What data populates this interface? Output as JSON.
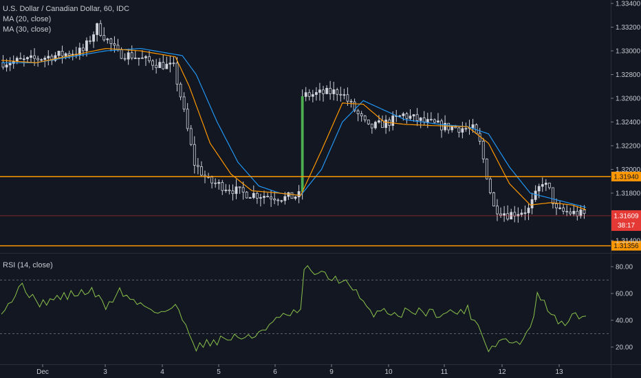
{
  "legend": {
    "main_title": "U.S. Dollar / Canadian Dollar, 60, IDC",
    "ma20_label": "MA (20, close)",
    "ma30_label": "MA (30, close)",
    "rsi_label": "RSI (14, close)"
  },
  "colors": {
    "background": "#131722",
    "candle": "#d1d4dc",
    "ma20": "#ff9800",
    "ma30": "#2196f3",
    "rsi": "#8bc34a",
    "level_line": "#ff9800",
    "last_price": "#e53935",
    "grid_text": "#c8cbd2",
    "bullish_jump": "#4caf50"
  },
  "chart_data": [
    {
      "type": "candlestick",
      "title": "U.S. Dollar / Canadian Dollar, 60, IDC",
      "ylim": [
        1.313,
        1.334
      ],
      "y_ticks": [
        "1.33400",
        "1.33200",
        "1.33000",
        "1.32800",
        "1.32600",
        "1.32400",
        "1.32200",
        "1.32000",
        "1.31800",
        "1.31400"
      ],
      "x_ticks": [
        "Dec",
        "3",
        "4",
        "5",
        "6",
        "9",
        "10",
        "11",
        "12",
        "13"
      ],
      "series": [
        {
          "name": "MA (20, close)",
          "color": "#ff9800"
        },
        {
          "name": "MA (30, close)",
          "color": "#2196f3"
        }
      ],
      "close_path": [
        [
          0,
          1.329
        ],
        [
          8,
          1.3292
        ],
        [
          16,
          1.3296
        ],
        [
          24,
          1.33
        ],
        [
          28,
          1.332
        ],
        [
          34,
          1.3298
        ],
        [
          38,
          1.3296
        ],
        [
          44,
          1.329
        ],
        [
          50,
          1.3286
        ],
        [
          52,
          1.3262
        ],
        [
          56,
          1.3205
        ],
        [
          60,
          1.319
        ],
        [
          64,
          1.3186
        ],
        [
          70,
          1.318
        ],
        [
          76,
          1.3178
        ],
        [
          82,
          1.3176
        ],
        [
          86,
          1.3178
        ],
        [
          87,
          1.3262
        ],
        [
          92,
          1.3264
        ],
        [
          98,
          1.3266
        ],
        [
          102,
          1.325
        ],
        [
          106,
          1.3235
        ],
        [
          112,
          1.324
        ],
        [
          116,
          1.3246
        ],
        [
          122,
          1.324
        ],
        [
          128,
          1.3236
        ],
        [
          136,
          1.3234
        ],
        [
          138,
          1.3222
        ],
        [
          142,
          1.3168
        ],
        [
          146,
          1.3162
        ],
        [
          152,
          1.3166
        ],
        [
          156,
          1.319
        ],
        [
          158,
          1.3182
        ],
        [
          160,
          1.3165
        ],
        [
          168,
          1.3162
        ]
      ],
      "ma20_path": [
        [
          0,
          1.3292
        ],
        [
          10,
          1.329
        ],
        [
          20,
          1.3296
        ],
        [
          30,
          1.3302
        ],
        [
          40,
          1.33
        ],
        [
          50,
          1.3295
        ],
        [
          54,
          1.327
        ],
        [
          60,
          1.3222
        ],
        [
          66,
          1.3196
        ],
        [
          72,
          1.3182
        ],
        [
          80,
          1.318
        ],
        [
          86,
          1.3178
        ],
        [
          92,
          1.3216
        ],
        [
          98,
          1.3256
        ],
        [
          104,
          1.3255
        ],
        [
          110,
          1.324
        ],
        [
          116,
          1.3238
        ],
        [
          124,
          1.3237
        ],
        [
          134,
          1.3236
        ],
        [
          140,
          1.3222
        ],
        [
          146,
          1.3188
        ],
        [
          152,
          1.317
        ],
        [
          158,
          1.3172
        ],
        [
          164,
          1.317
        ],
        [
          168,
          1.3166
        ]
      ],
      "ma30_path": [
        [
          0,
          1.329
        ],
        [
          10,
          1.329
        ],
        [
          20,
          1.3295
        ],
        [
          30,
          1.33
        ],
        [
          40,
          1.3302
        ],
        [
          52,
          1.3296
        ],
        [
          56,
          1.328
        ],
        [
          62,
          1.324
        ],
        [
          68,
          1.3206
        ],
        [
          74,
          1.3186
        ],
        [
          80,
          1.318
        ],
        [
          86,
          1.3178
        ],
        [
          92,
          1.32
        ],
        [
          98,
          1.324
        ],
        [
          104,
          1.3258
        ],
        [
          110,
          1.325
        ],
        [
          116,
          1.3242
        ],
        [
          126,
          1.3238
        ],
        [
          134,
          1.3236
        ],
        [
          140,
          1.323
        ],
        [
          146,
          1.3202
        ],
        [
          152,
          1.318
        ],
        [
          160,
          1.3174
        ],
        [
          168,
          1.3168
        ]
      ],
      "levels": [
        {
          "value": 1.3194,
          "label": "1.31940"
        },
        {
          "value": 1.31356,
          "label": "1.31356"
        }
      ],
      "last_price": {
        "value": 1.31609,
        "label": "1.31609",
        "countdown": "38:17"
      }
    },
    {
      "type": "line",
      "title": "RSI (14, close)",
      "ylim": [
        10,
        87
      ],
      "y_ticks": [
        "80.00",
        "60.00",
        "40.00",
        "20.00"
      ],
      "reference_lines": [
        70,
        30
      ],
      "series": [
        {
          "name": "RSI (14, close)",
          "color": "#8bc34a"
        }
      ],
      "path": [
        [
          0,
          48
        ],
        [
          4,
          58
        ],
        [
          6,
          68
        ],
        [
          10,
          52
        ],
        [
          14,
          55
        ],
        [
          18,
          58
        ],
        [
          22,
          60
        ],
        [
          26,
          62
        ],
        [
          30,
          50
        ],
        [
          34,
          62
        ],
        [
          38,
          54
        ],
        [
          42,
          50
        ],
        [
          46,
          46
        ],
        [
          50,
          50
        ],
        [
          54,
          32
        ],
        [
          56,
          20
        ],
        [
          60,
          24
        ],
        [
          64,
          26
        ],
        [
          68,
          28
        ],
        [
          72,
          26
        ],
        [
          74,
          32
        ],
        [
          78,
          38
        ],
        [
          82,
          44
        ],
        [
          86,
          46
        ],
        [
          87,
          78
        ],
        [
          90,
          76
        ],
        [
          94,
          72
        ],
        [
          98,
          70
        ],
        [
          102,
          60
        ],
        [
          106,
          45
        ],
        [
          110,
          48
        ],
        [
          114,
          44
        ],
        [
          118,
          48
        ],
        [
          122,
          46
        ],
        [
          128,
          45
        ],
        [
          134,
          48
        ],
        [
          138,
          32
        ],
        [
          140,
          18
        ],
        [
          144,
          26
        ],
        [
          148,
          22
        ],
        [
          152,
          32
        ],
        [
          154,
          58
        ],
        [
          158,
          46
        ],
        [
          160,
          36
        ],
        [
          164,
          42
        ],
        [
          168,
          44
        ]
      ]
    }
  ]
}
